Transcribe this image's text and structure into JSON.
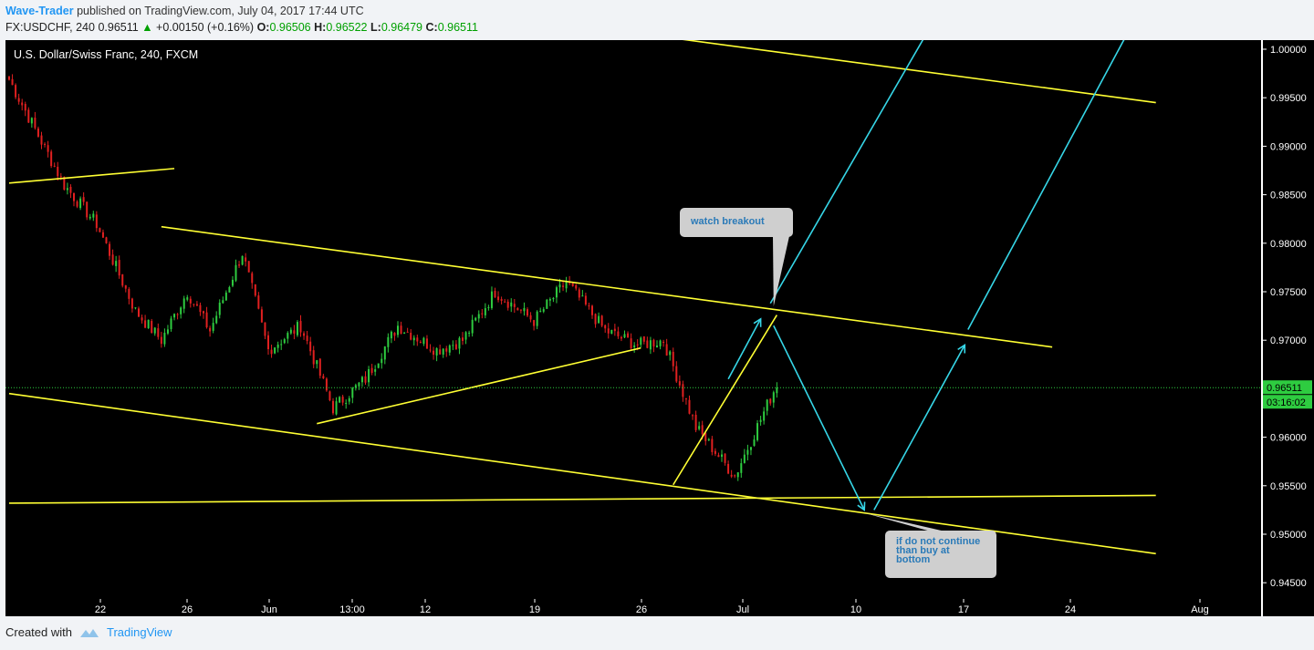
{
  "header": {
    "author": "Wave-Trader",
    "published_text": "published on TradingView.com, July 04, 2017 17:44 UTC"
  },
  "quote": {
    "symbol": "FX:USDCHF, 240",
    "last": "0.96511",
    "change": "+0.00150 (+0.16%)",
    "open_label": "O:",
    "open": "0.96506",
    "high_label": "H:",
    "high": "0.96522",
    "low_label": "L:",
    "low": "0.96479",
    "close_label": "C:",
    "close": "0.96511"
  },
  "footer": {
    "created_with": "Created with",
    "brand": "TradingView"
  },
  "colors": {
    "background": "#000000",
    "up": "#2ecc40",
    "down": "#e02020",
    "trendline": "#ffff33",
    "arrow": "#36d6e7",
    "price_line": "#2ecc40",
    "callout_bg": "#cfcfcf",
    "callout_text": "#2a7ab8"
  },
  "chart_data": {
    "type": "candlestick",
    "title": "U.S. Dollar/Swiss Franc, 240, FXCM",
    "y_axis": {
      "ticks": [
        "1.00000",
        "0.99500",
        "0.99000",
        "0.98500",
        "0.98000",
        "0.97500",
        "0.97000",
        "0.96500",
        "0.96000",
        "0.95500",
        "0.95000",
        "0.94500"
      ],
      "range": [
        0.9435,
        1.0015
      ]
    },
    "x_axis": {
      "ticks": [
        "22",
        "26",
        "Jun",
        "13:00",
        "12",
        "19",
        "26",
        "Jul",
        "10",
        "17",
        "24",
        "Aug"
      ]
    },
    "current_price": {
      "value": 0.96511,
      "label": "0.96511",
      "countdown": "03:16:02"
    },
    "price_segments": [
      [
        0.9975,
        0.986,
        18
      ],
      [
        0.986,
        0.982,
        10
      ],
      [
        0.982,
        0.973,
        12
      ],
      [
        0.973,
        0.97,
        8
      ],
      [
        0.97,
        0.975,
        8
      ],
      [
        0.975,
        0.971,
        7
      ],
      [
        0.971,
        0.979,
        10
      ],
      [
        0.979,
        0.969,
        8
      ],
      [
        0.969,
        0.9715,
        10
      ],
      [
        0.9715,
        0.963,
        10
      ],
      [
        0.963,
        0.966,
        10
      ],
      [
        0.966,
        0.9715,
        10
      ],
      [
        0.9715,
        0.969,
        12
      ],
      [
        0.969,
        0.97,
        8
      ],
      [
        0.97,
        0.975,
        10
      ],
      [
        0.975,
        0.972,
        12
      ],
      [
        0.972,
        0.976,
        10
      ],
      [
        0.976,
        0.971,
        12
      ],
      [
        0.971,
        0.9695,
        10
      ],
      [
        0.9695,
        0.97,
        8
      ],
      [
        0.97,
        0.961,
        10
      ],
      [
        0.961,
        0.956,
        12
      ],
      [
        0.956,
        0.9655,
        13
      ]
    ],
    "drawings": {
      "lines": [
        {
          "p1": [
            "index:0",
            0.9862
          ],
          "p2": [
            "index:51",
            0.9877
          ]
        },
        {
          "p1": [
            "index:47",
            0.9817
          ],
          "p2": [
            "index:322",
            0.9693
          ]
        },
        {
          "p1": [
            "index:95",
            0.9614
          ],
          "p2": [
            "index:195",
            0.9692
          ]
        },
        {
          "p1": [
            "index:0",
            0.9645
          ],
          "p2": [
            "index:354",
            0.948
          ]
        },
        {
          "p1": [
            "index:0",
            0.9532
          ],
          "p2": [
            "index:354",
            0.954
          ]
        },
        {
          "p1": [
            "index:197",
            1.0015
          ],
          "p2": [
            "index:354",
            0.9945
          ]
        },
        {
          "p1": [
            "index:205",
            0.9551
          ],
          "p2": [
            "index:237",
            0.9726
          ]
        }
      ],
      "arrows": [
        {
          "p1": [
            "index:222",
            0.966
          ],
          "p2": [
            "index:232",
            0.9722
          ]
        },
        {
          "p1": [
            "index:236",
            0.9715
          ],
          "p2": [
            "index:264",
            0.9525
          ]
        },
        {
          "p1": [
            "index:267",
            0.9525
          ],
          "p2": [
            "index:295",
            0.9695
          ]
        }
      ],
      "rays": [
        {
          "p1": [
            "index:235",
            0.9738
          ],
          "p2": [
            "index:283",
            1.0015
          ]
        },
        {
          "p1": [
            "index:296",
            0.9711
          ],
          "p2": [
            "index:345",
            1.0015
          ]
        }
      ]
    },
    "annotations": [
      {
        "text": "watch breakout",
        "anchor": [
          "index:236",
          0.9735
        ]
      },
      {
        "text": "if do not continue than buy at bottom",
        "anchor": [
          "index:264",
          0.9522
        ]
      }
    ]
  }
}
